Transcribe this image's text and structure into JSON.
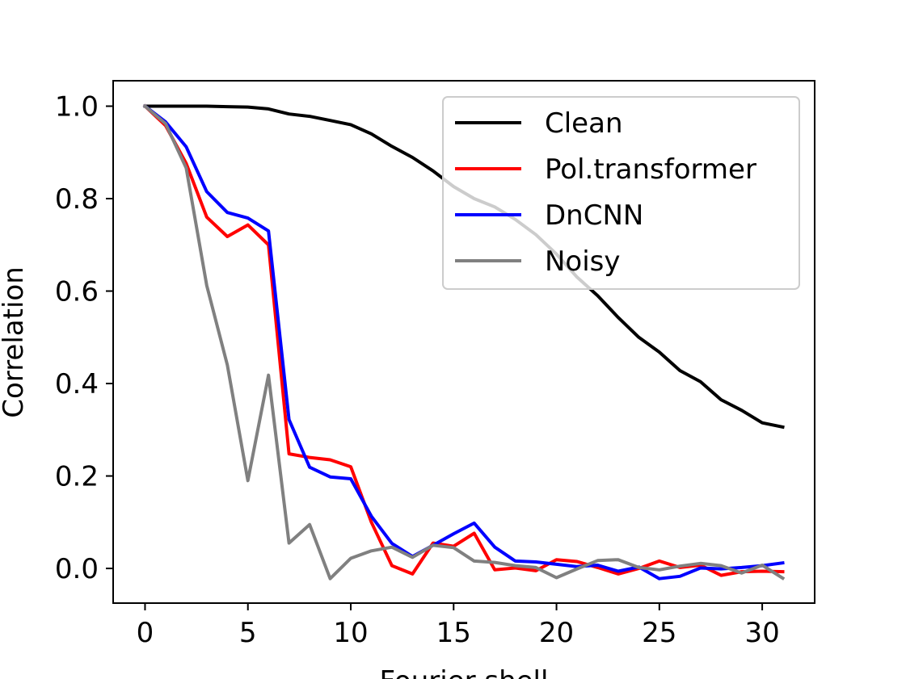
{
  "chart_data": {
    "type": "line",
    "xlabel": "Fourier shell",
    "ylabel": "Correlation",
    "xlim": [
      -1.55,
      32.55
    ],
    "ylim": [
      -0.075,
      1.055
    ],
    "xticks": [
      "0",
      "5",
      "10",
      "15",
      "20",
      "25",
      "30"
    ],
    "yticks": [
      "0.0",
      "0.2",
      "0.4",
      "0.6",
      "0.8",
      "1.0"
    ],
    "grid": false,
    "legend_position": "top-right",
    "x": [
      0,
      1,
      2,
      3,
      4,
      5,
      6,
      7,
      8,
      9,
      10,
      11,
      12,
      13,
      14,
      15,
      16,
      17,
      18,
      19,
      20,
      21,
      22,
      23,
      24,
      25,
      26,
      27,
      28,
      29,
      30,
      31
    ],
    "series": [
      {
        "name": "Clean",
        "color": "#000000",
        "values": [
          1.0,
          1.0,
          1.0,
          1.0,
          0.999,
          0.998,
          0.994,
          0.983,
          0.978,
          0.969,
          0.96,
          0.94,
          0.913,
          0.889,
          0.86,
          0.826,
          0.8,
          0.782,
          0.755,
          0.722,
          0.68,
          0.63,
          0.59,
          0.543,
          0.5,
          0.468,
          0.428,
          0.404,
          0.365,
          0.342,
          0.315,
          0.306
        ]
      },
      {
        "name": "Pol.transformer",
        "color": "#ff0000",
        "values": [
          1.0,
          0.958,
          0.876,
          0.76,
          0.718,
          0.743,
          0.7,
          0.248,
          0.24,
          0.235,
          0.22,
          0.1,
          0.006,
          -0.012,
          0.055,
          0.048,
          0.076,
          -0.003,
          0.001,
          -0.005,
          0.019,
          0.015,
          0.002,
          -0.012,
          0.0,
          0.016,
          0.002,
          0.007,
          -0.015,
          -0.007,
          -0.006,
          -0.007
        ]
      },
      {
        "name": "DnCNN",
        "color": "#0000ff",
        "values": [
          1.0,
          0.966,
          0.912,
          0.815,
          0.77,
          0.758,
          0.73,
          0.322,
          0.219,
          0.198,
          0.194,
          0.113,
          0.054,
          0.026,
          0.05,
          0.075,
          0.098,
          0.046,
          0.016,
          0.014,
          0.009,
          0.004,
          0.007,
          -0.006,
          0.003,
          -0.022,
          -0.017,
          0.001,
          -0.001,
          0.002,
          0.006,
          0.012
        ]
      },
      {
        "name": "Noisy",
        "color": "#808080",
        "values": [
          1.0,
          0.962,
          0.866,
          0.612,
          0.44,
          0.19,
          0.418,
          0.055,
          0.095,
          -0.022,
          0.022,
          0.038,
          0.046,
          0.024,
          0.05,
          0.045,
          0.016,
          0.013,
          0.006,
          0.002,
          -0.02,
          -0.001,
          0.017,
          0.019,
          0.002,
          -0.003,
          0.005,
          0.011,
          0.006,
          -0.01,
          0.007,
          -0.021
        ]
      }
    ]
  }
}
